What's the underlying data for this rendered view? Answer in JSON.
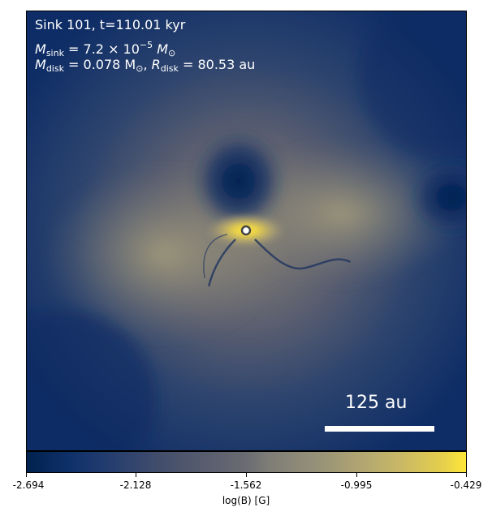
{
  "panel": {
    "title_line": "Sink 101, t=110.01 kyr",
    "msink": {
      "symbol": "M",
      "sub": "sink",
      "eq": " = 7.2 × 10",
      "exp": "−5",
      "unit": " M",
      "unit_sub": "⊙"
    },
    "mdisk": {
      "symbol": "M",
      "sub": "disk",
      "eq": " = 0.078 M",
      "unit_sub": "⊙",
      "sep": ", ",
      "r_symbol": "R",
      "r_sub": "disk",
      "r_eq": " = 80.53 au"
    },
    "scalebar_label": "125 au"
  },
  "colorbar": {
    "ticks": [
      "-2.694",
      "-2.128",
      "-1.562",
      "-0.995",
      "-0.429"
    ],
    "label": "log(B) [G]",
    "colors": {
      "low": "#00224e",
      "mid": "#7e7d77",
      "high": "#fee838"
    }
  },
  "sink_marker": {
    "color": "#ffffff",
    "edge": "#444444"
  }
}
